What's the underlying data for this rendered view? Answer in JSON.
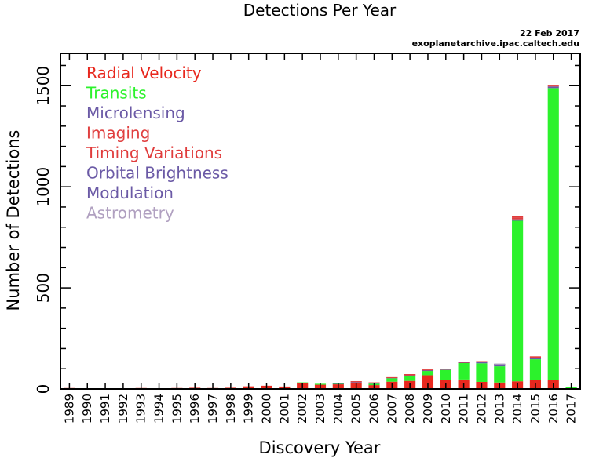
{
  "chart_data": {
    "type": "bar",
    "title": "Detections Per Year",
    "date": "22 Feb 2017",
    "source": "exoplanetarchive.ipac.caltech.edu",
    "xlabel": "Discovery Year",
    "ylabel": "Number of Detections",
    "ylim": [
      0,
      1660
    ],
    "yticks": [
      0,
      500,
      1000,
      1500
    ],
    "stacked": true,
    "legend_position": "top-left",
    "categories": [
      "1989",
      "1990",
      "1991",
      "1992",
      "1993",
      "1994",
      "1995",
      "1996",
      "1997",
      "1998",
      "1999",
      "2000",
      "2001",
      "2002",
      "2003",
      "2004",
      "2005",
      "2006",
      "2007",
      "2008",
      "2009",
      "2010",
      "2011",
      "2012",
      "2013",
      "2014",
      "2015",
      "2016",
      "2017"
    ],
    "series": [
      {
        "name": "Radial Velocity",
        "color": "#e8281e",
        "values": [
          1,
          0,
          0,
          0,
          1,
          0,
          1,
          6,
          1,
          6,
          13,
          16,
          12,
          28,
          21,
          23,
          32,
          19,
          36,
          40,
          68,
          44,
          47,
          35,
          32,
          38,
          44,
          46,
          3
        ]
      },
      {
        "name": "Transits",
        "color": "#2cf22c",
        "values": [
          0,
          0,
          0,
          0,
          0,
          0,
          0,
          0,
          0,
          0,
          0,
          0,
          0,
          1,
          1,
          2,
          0,
          7,
          17,
          23,
          21,
          50,
          81,
          92,
          80,
          794,
          103,
          1442,
          7
        ]
      },
      {
        "name": "Microlensing",
        "color": "#6b5aa6",
        "values": [
          0,
          0,
          0,
          0,
          0,
          0,
          0,
          0,
          0,
          0,
          0,
          0,
          0,
          0,
          0,
          1,
          2,
          2,
          1,
          4,
          3,
          2,
          1,
          5,
          5,
          7,
          8,
          8,
          0
        ]
      },
      {
        "name": "Imaging",
        "color": "#e04040",
        "values": [
          0,
          0,
          0,
          0,
          0,
          0,
          0,
          0,
          0,
          0,
          0,
          0,
          0,
          0,
          0,
          0,
          1,
          2,
          1,
          2,
          1,
          1,
          2,
          1,
          2,
          10,
          2,
          2,
          0
        ]
      },
      {
        "name": "Timing Variations",
        "color": "#e03c3c",
        "values": [
          0,
          0,
          0,
          0,
          0,
          0,
          0,
          0,
          0,
          0,
          0,
          0,
          0,
          0,
          0,
          0,
          0,
          0,
          0,
          1,
          0,
          0,
          0,
          1,
          1,
          1,
          1,
          0,
          0
        ]
      },
      {
        "name": "Orbital Brightness",
        "color": "#6b5aa6",
        "values": [
          0,
          0,
          0,
          0,
          0,
          0,
          0,
          0,
          0,
          0,
          0,
          0,
          0,
          0,
          0,
          0,
          0,
          0,
          0,
          0,
          0,
          0,
          1,
          0,
          0,
          0,
          0,
          0,
          0
        ]
      },
      {
        "name": "Modulation",
        "color": "#6b5aa6",
        "values": [
          0,
          0,
          0,
          0,
          0,
          0,
          0,
          0,
          0,
          0,
          0,
          0,
          0,
          0,
          0,
          0,
          0,
          0,
          0,
          0,
          0,
          0,
          0,
          0,
          1,
          0,
          0,
          0,
          0
        ]
      },
      {
        "name": "Astrometry",
        "color": "#b0a0c0",
        "values": [
          0,
          0,
          0,
          0,
          0,
          0,
          0,
          0,
          0,
          0,
          0,
          0,
          0,
          0,
          0,
          0,
          0,
          0,
          0,
          0,
          0,
          0,
          0,
          0,
          1,
          0,
          0,
          0,
          0
        ]
      }
    ]
  }
}
